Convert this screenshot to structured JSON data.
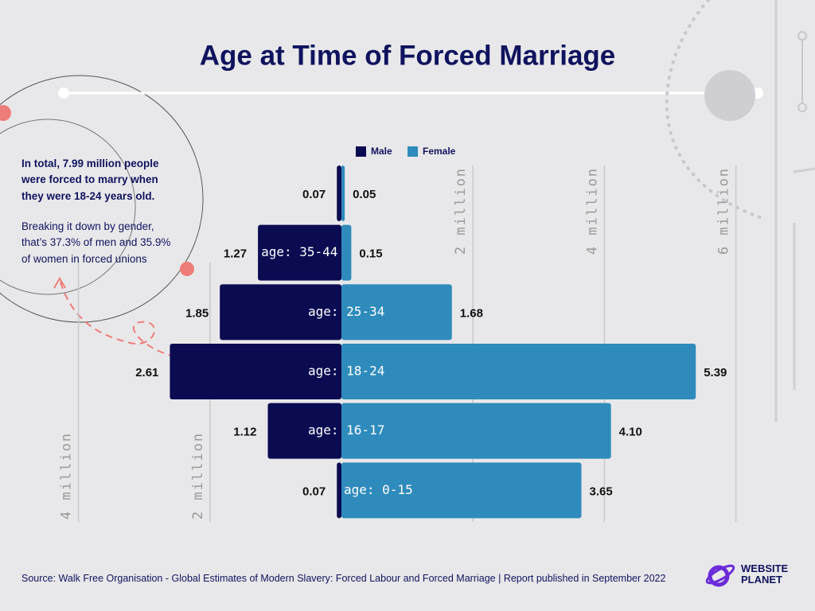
{
  "chart_data": {
    "type": "pyramid",
    "title": "Age at Time of Forced Marriage",
    "categories": [
      null,
      "age: 35-44",
      "age: 25-34",
      "age: 18-24",
      "age: 16-17",
      "age: 0-15"
    ],
    "series": [
      {
        "name": "Male",
        "color": "#0b0b52",
        "values": [
          0.07,
          1.27,
          1.85,
          2.61,
          1.12,
          0.07
        ]
      },
      {
        "name": "Female",
        "color": "#2e8bbc",
        "values": [
          0.05,
          0.15,
          1.68,
          5.39,
          4.1,
          3.65
        ],
        "value_labels": [
          "0.05",
          "0.15",
          "1.68",
          "5.39",
          "4.10",
          "3.65"
        ]
      }
    ],
    "xlim": [
      0,
      7
    ],
    "xticks": [
      {
        "value": 2,
        "label": "2 million"
      },
      {
        "value": 4,
        "label": "4 million"
      },
      {
        "value": 6,
        "label": "6 million"
      }
    ],
    "x2ticks": [
      {
        "value": 2,
        "label": "2 million"
      },
      {
        "value": 4,
        "label": "4 million"
      }
    ],
    "grid": true,
    "annotation": "In total, 7.99 million people were forced to marry when they were 18-24 years old.",
    "annotation_detail": "Breaking it down by gender, that’s 37.3% of men and 35.9% of women in forced unions",
    "source": "Source: Walk Free Organisation - Global Estimates of Modern Slavery: Forced Labour and Forced Marriage | Report published in September 2022",
    "logo": [
      "WEBSITE",
      "PLANET"
    ]
  }
}
